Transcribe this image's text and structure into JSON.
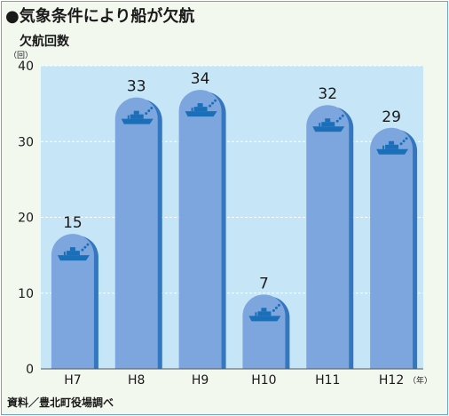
{
  "title": "●気象条件により船が欠航",
  "source": "資料／豊北町役場調べ",
  "colors": {
    "frame_border": "#6aa4cf",
    "frame_bg": "#f2f8ee",
    "plot_bg": "#c6e6f7",
    "bar_fill": "#7ea6de",
    "bar_shadow": "#3476c0",
    "ship": "#1a6fb8",
    "text": "#1a1a1a"
  },
  "chart_data": {
    "type": "bar",
    "title": "●気象条件により船が欠航",
    "ylabel": "欠航回数",
    "yunit": "（回）",
    "xunit": "（年）",
    "categories": [
      "H7",
      "H8",
      "H9",
      "H10",
      "H11",
      "H12"
    ],
    "values": [
      15,
      33,
      34,
      7,
      32,
      29
    ],
    "data_labels": [
      "15",
      "33",
      "34",
      "7",
      "32",
      "29"
    ],
    "ylim": [
      0,
      40
    ],
    "yticks": [
      0,
      10,
      20,
      30,
      40
    ],
    "ytick_labels": [
      "0",
      "10",
      "20",
      "30",
      "40"
    ],
    "grid": true,
    "marker_icon": "ship-icon"
  }
}
